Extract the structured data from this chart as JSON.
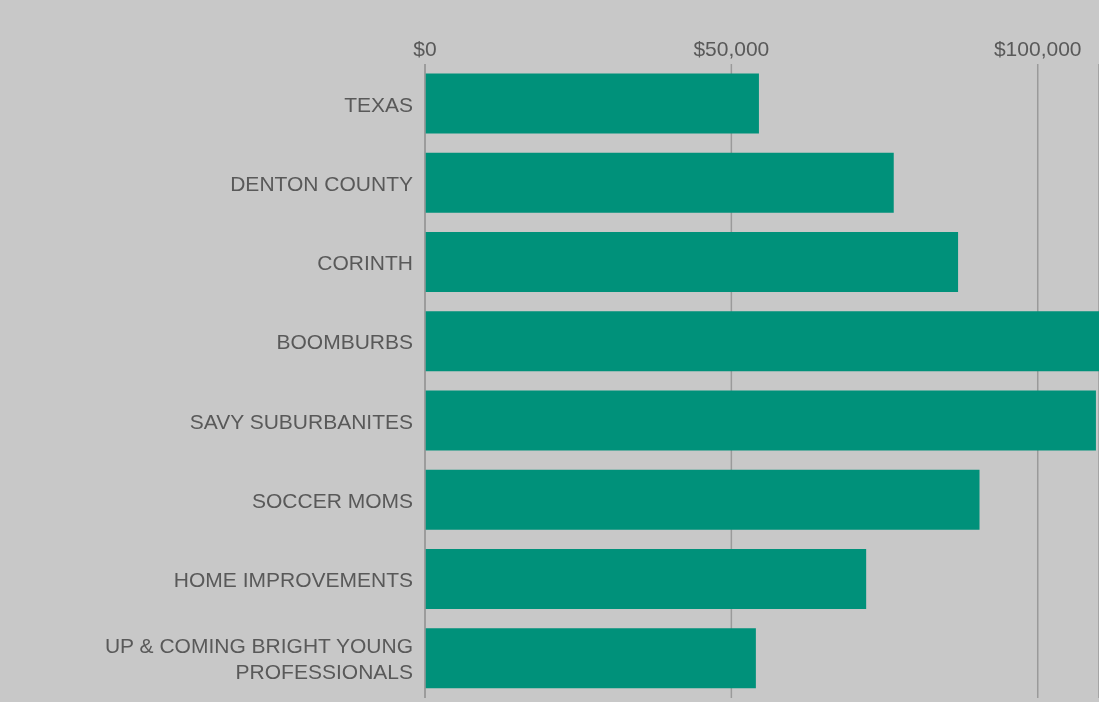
{
  "chart_data": {
    "type": "bar",
    "orientation": "horizontal",
    "categories": [
      "TEXAS",
      "DENTON COUNTY",
      "CORINTH",
      "BOOMBURBS",
      "SAVY SUBURBANITES",
      "SOCCER MOMS",
      "HOME IMPROVEMENTS",
      "UP & COMING BRIGHT YOUNG PROFESSIONALS"
    ],
    "values": [
      54500,
      76500,
      87000,
      110000,
      109500,
      90500,
      72000,
      54000
    ],
    "color": "#00917a",
    "xlim": [
      0,
      110000
    ],
    "xticks": [
      {
        "value": 0,
        "label": "$0"
      },
      {
        "value": 50000,
        "label": "$50,000"
      },
      {
        "value": 100000,
        "label": "$100,000"
      }
    ],
    "grid": "x",
    "legend": false
  }
}
